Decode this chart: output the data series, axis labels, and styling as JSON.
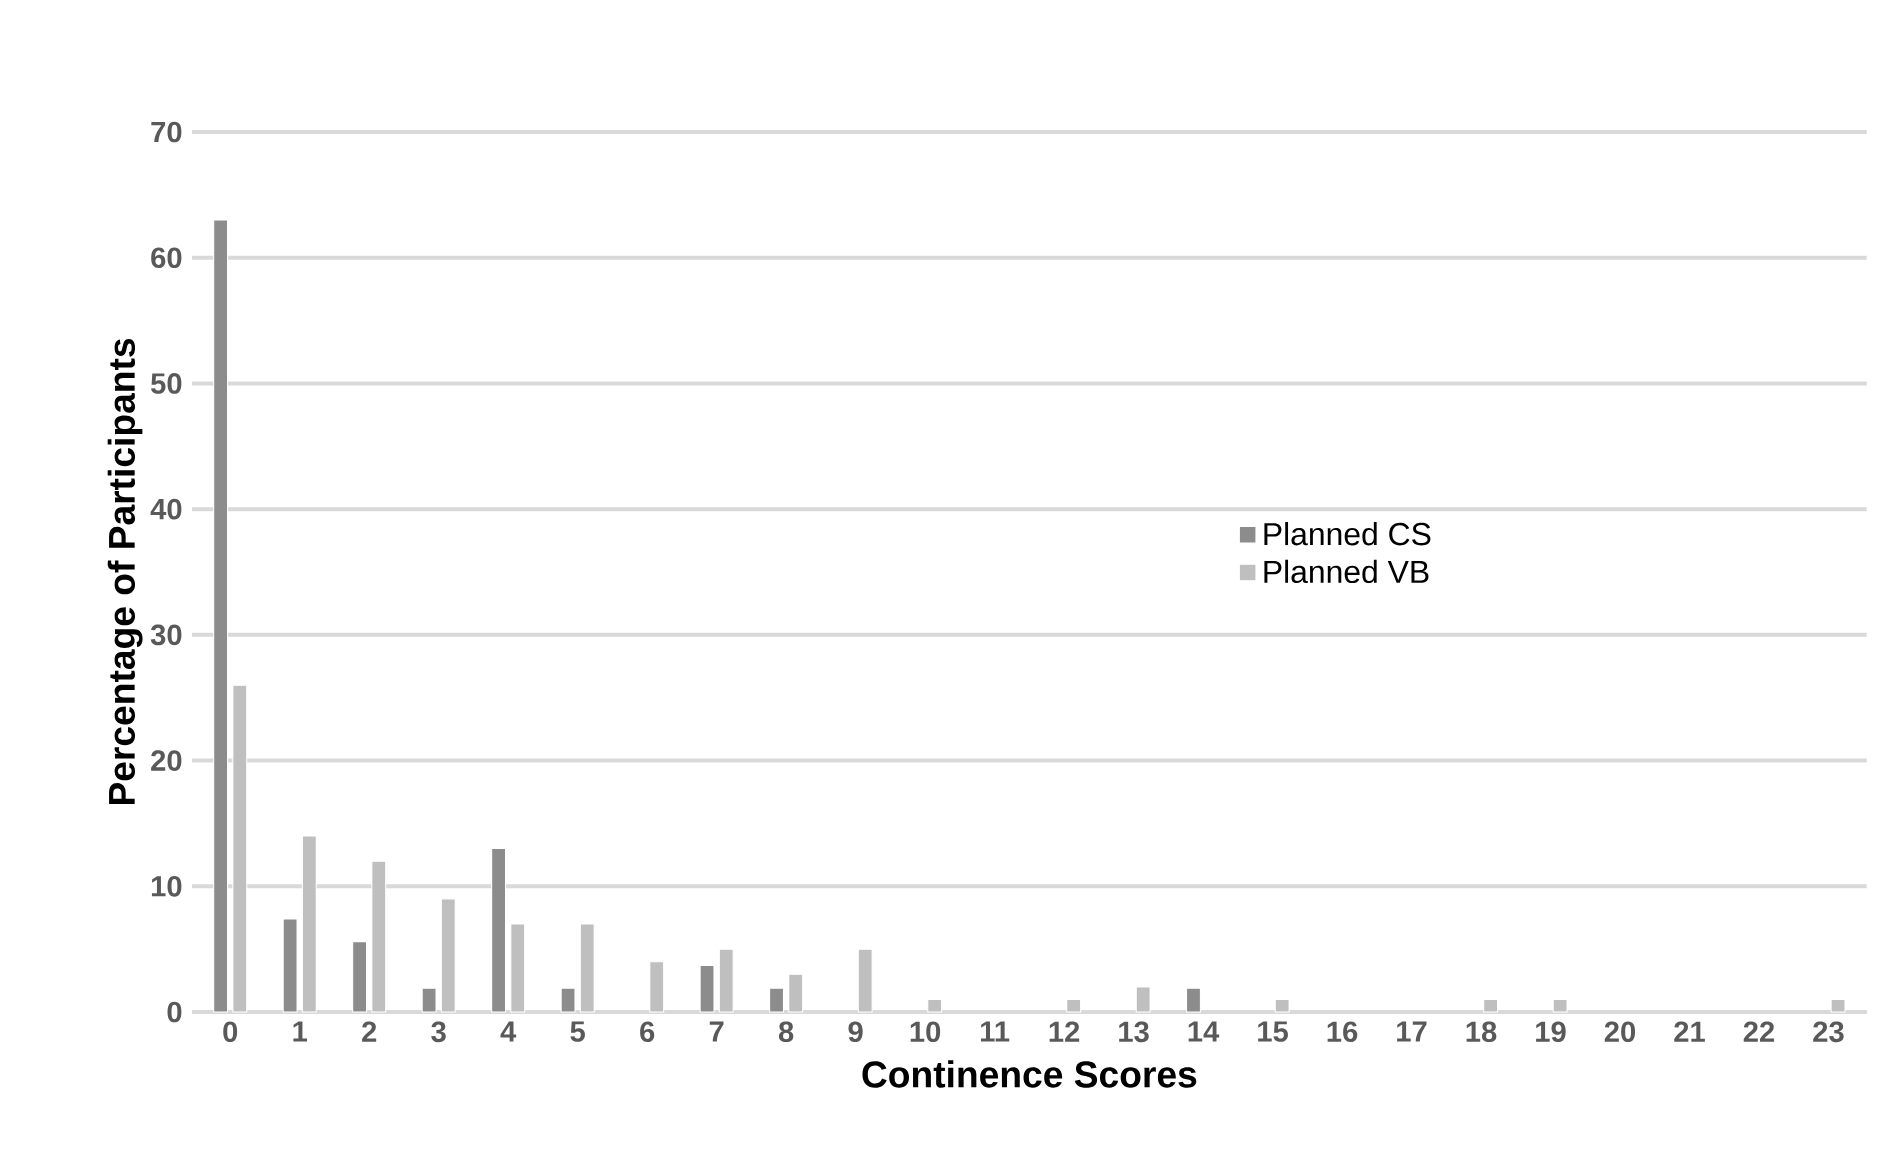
{
  "chart_data": {
    "type": "bar",
    "xlabel": "Continence Scores",
    "ylabel": "Percentage of Participants",
    "categories": [
      "0",
      "1",
      "2",
      "3",
      "4",
      "5",
      "6",
      "7",
      "8",
      "9",
      "10",
      "11",
      "12",
      "13",
      "14",
      "15",
      "16",
      "17",
      "18",
      "19",
      "20",
      "21",
      "22",
      "23"
    ],
    "series": [
      {
        "name": "Planned CS",
        "color": "#8c8c8c",
        "values": [
          63,
          7.4,
          5.6,
          1.9,
          13,
          1.9,
          null,
          3.7,
          1.9,
          null,
          null,
          null,
          null,
          null,
          1.9,
          null,
          null,
          null,
          null,
          null,
          null,
          null,
          null,
          null
        ]
      },
      {
        "name": "Planned VB",
        "color": "#bfbfbf",
        "values": [
          26,
          14,
          12,
          9,
          7,
          7,
          4,
          5,
          3,
          5,
          1,
          null,
          1,
          2,
          null,
          1,
          null,
          null,
          1,
          1,
          null,
          null,
          null,
          1
        ]
      }
    ],
    "ylim": [
      0,
      70
    ],
    "yticks": [
      0,
      10,
      20,
      30,
      40,
      50,
      60,
      70
    ],
    "grid": "y",
    "legend": "right"
  }
}
